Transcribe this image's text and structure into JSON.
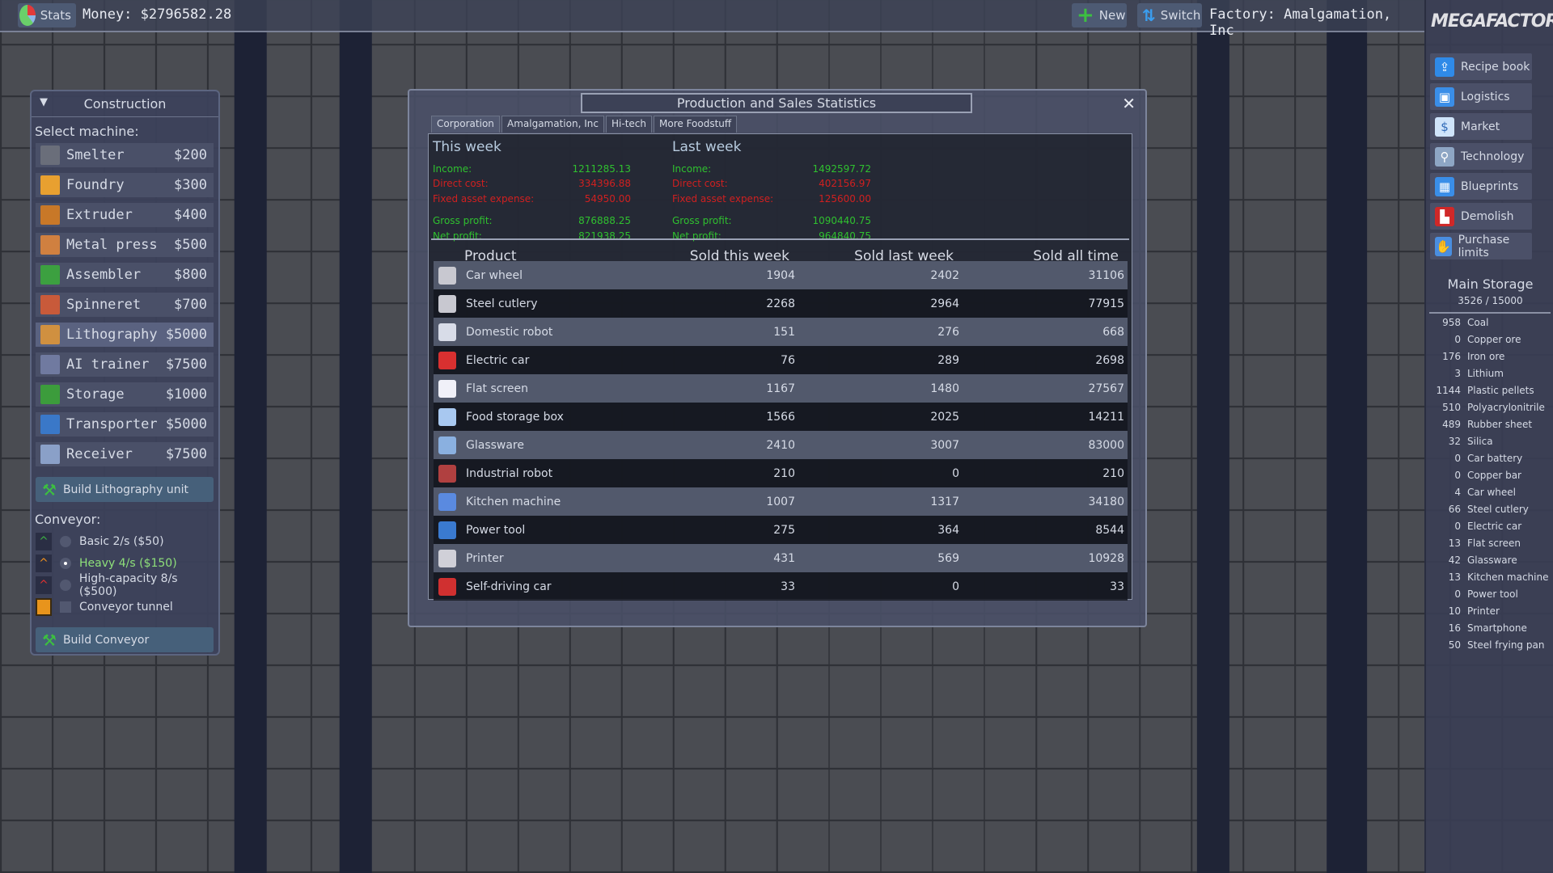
{
  "topbar": {
    "stats_label": "Stats",
    "money": "Money: $2796582.28",
    "new_label": "New",
    "switch_label": "Switch",
    "factory": "Factory: Amalgamation, Inc"
  },
  "logo": "MEGAFACTORY",
  "menu": [
    {
      "label": "Recipe book",
      "icon": "recipe-book-icon"
    },
    {
      "label": "Logistics",
      "icon": "truck-icon"
    },
    {
      "label": "Market",
      "icon": "dollar-coin-icon"
    },
    {
      "label": "Technology",
      "icon": "microscope-icon"
    },
    {
      "label": "Blueprints",
      "icon": "blueprint-icon"
    },
    {
      "label": "Demolish",
      "icon": "bulldozer-icon"
    },
    {
      "label": "Purchase limits",
      "icon": "hand-icon"
    }
  ],
  "storage": {
    "title": "Main Storage",
    "capacity": "3526  /  15000",
    "items": [
      {
        "n": "958",
        "name": "Coal"
      },
      {
        "n": "0",
        "name": "Copper ore"
      },
      {
        "n": "176",
        "name": "Iron ore"
      },
      {
        "n": "3",
        "name": "Lithium"
      },
      {
        "n": "1144",
        "name": "Plastic pellets"
      },
      {
        "n": "510",
        "name": "Polyacrylonitrile"
      },
      {
        "n": "489",
        "name": "Rubber sheet"
      },
      {
        "n": "32",
        "name": "Silica"
      },
      {
        "n": "0",
        "name": "Car battery"
      },
      {
        "n": "0",
        "name": "Copper bar"
      },
      {
        "n": "4",
        "name": "Car wheel"
      },
      {
        "n": "66",
        "name": "Steel cutlery"
      },
      {
        "n": "0",
        "name": "Electric car"
      },
      {
        "n": "13",
        "name": "Flat screen"
      },
      {
        "n": "42",
        "name": "Glassware"
      },
      {
        "n": "13",
        "name": "Kitchen machine"
      },
      {
        "n": "0",
        "name": "Power tool"
      },
      {
        "n": "10",
        "name": "Printer"
      },
      {
        "n": "16",
        "name": "Smartphone"
      },
      {
        "n": "50",
        "name": "Steel frying pan"
      }
    ]
  },
  "construction": {
    "title": "Construction",
    "select_label": "Select machine:",
    "machines": [
      {
        "name": "Smelter",
        "price": "$200"
      },
      {
        "name": "Foundry",
        "price": "$300"
      },
      {
        "name": "Extruder",
        "price": "$400"
      },
      {
        "name": "Metal press",
        "price": "$500"
      },
      {
        "name": "Assembler",
        "price": "$800"
      },
      {
        "name": "Spinneret",
        "price": "$700"
      },
      {
        "name": "Lithography",
        "price": "$5000"
      },
      {
        "name": "AI trainer",
        "price": "$7500"
      },
      {
        "name": "Storage",
        "price": "$1000"
      },
      {
        "name": "Transporter",
        "price": "$5000"
      },
      {
        "name": "Receiver",
        "price": "$7500"
      }
    ],
    "selected_machine": "Lithography",
    "build_machine_label": "Build Lithography unit",
    "conveyor_label": "Conveyor:",
    "conveyors": [
      {
        "label": "Basic 2/s ($50)",
        "color": "#3cb043"
      },
      {
        "label": "Heavy 4/s ($150)",
        "color": "#f0901e",
        "selected": true
      },
      {
        "label": "High-capacity 8/s ($500)",
        "color": "#e03030"
      }
    ],
    "tunnel_label": "Conveyor tunnel",
    "build_conveyor_label": "Build Conveyor"
  },
  "stats": {
    "title": "Production and Sales Statistics",
    "tabs": [
      "Corporation",
      "Amalgamation, Inc",
      "Hi-tech",
      "More Foodstuff"
    ],
    "active_tab": "Corporation",
    "this_week": {
      "heading": "This week",
      "income_label": "Income:",
      "income": "1211285.13",
      "direct_label": "Direct cost:",
      "direct": "334396.88",
      "fixed_label": "Fixed asset expense:",
      "fixed": "54950.00",
      "gross_label": "Gross profit:",
      "gross": "876888.25",
      "net_label": "Net profit:",
      "net": "821938.25"
    },
    "last_week": {
      "heading": "Last week",
      "income_label": "Income:",
      "income": "1492597.72",
      "direct_label": "Direct cost:",
      "direct": "402156.97",
      "fixed_label": "Fixed asset expense:",
      "fixed": "125600.00",
      "gross_label": "Gross profit:",
      "gross": "1090440.75",
      "net_label": "Net profit:",
      "net": "964840.75"
    },
    "columns": [
      "Product",
      "Sold this week",
      "Sold last week",
      "Sold all time"
    ],
    "rows": [
      {
        "product": "Car wheel",
        "this": "1904",
        "last": "2402",
        "all": "31106"
      },
      {
        "product": "Steel cutlery",
        "this": "2268",
        "last": "2964",
        "all": "77915"
      },
      {
        "product": "Domestic robot",
        "this": "151",
        "last": "276",
        "all": "668"
      },
      {
        "product": "Electric car",
        "this": "76",
        "last": "289",
        "all": "2698"
      },
      {
        "product": "Flat screen",
        "this": "1167",
        "last": "1480",
        "all": "27567"
      },
      {
        "product": "Food storage box",
        "this": "1566",
        "last": "2025",
        "all": "14211"
      },
      {
        "product": "Glassware",
        "this": "2410",
        "last": "3007",
        "all": "83000"
      },
      {
        "product": "Industrial robot",
        "this": "210",
        "last": "0",
        "all": "210"
      },
      {
        "product": "Kitchen machine",
        "this": "1007",
        "last": "1317",
        "all": "34180"
      },
      {
        "product": "Power tool",
        "this": "275",
        "last": "364",
        "all": "8544"
      },
      {
        "product": "Printer",
        "this": "431",
        "last": "569",
        "all": "10928"
      },
      {
        "product": "Self-driving car",
        "this": "33",
        "last": "0",
        "all": "33"
      }
    ]
  }
}
